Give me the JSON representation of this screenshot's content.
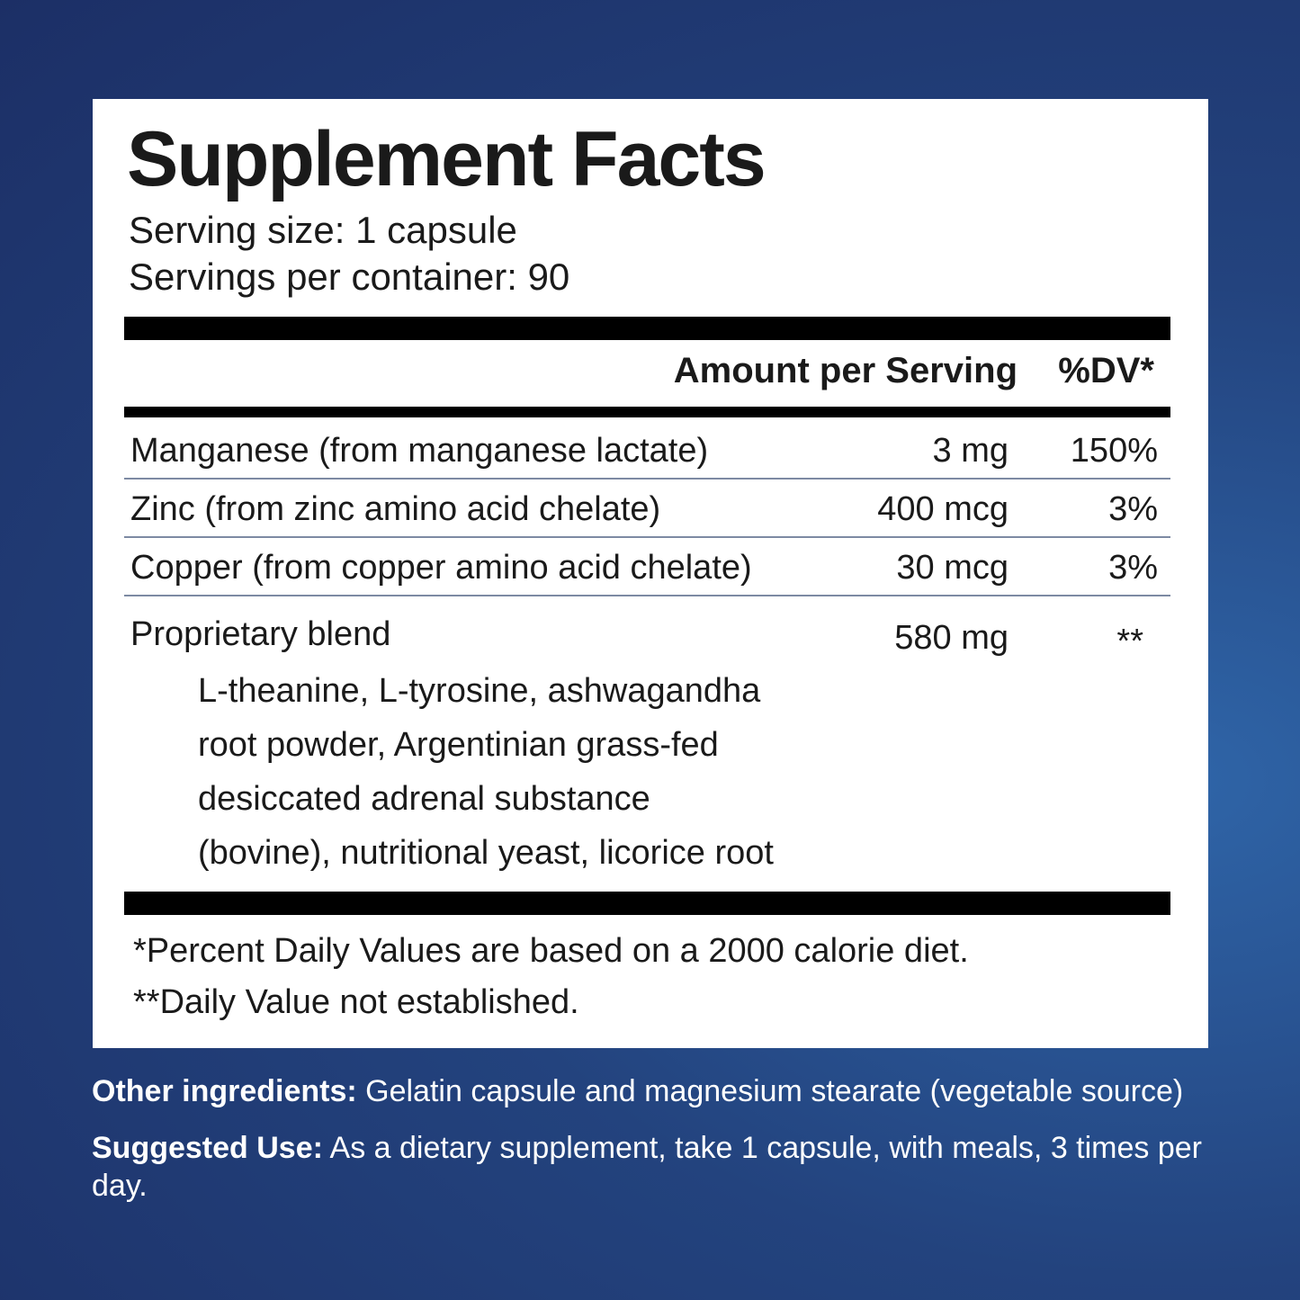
{
  "panel": {
    "title": "Supplement Facts",
    "serving_size": "Serving size: 1 capsule",
    "servings_per_container": "Servings per container: 90",
    "header": {
      "amount": "Amount per Serving",
      "dv": "%DV*"
    },
    "rows": [
      [
        "Manganese (from manganese lactate)",
        "3 mg",
        "150%"
      ],
      [
        "Zinc (from zinc amino acid chelate)",
        "400 mcg",
        "3%"
      ],
      [
        "Copper (from copper amino acid chelate)",
        "30 mcg",
        "3%"
      ]
    ],
    "blend": {
      "name": "Proprietary blend",
      "amount": "580 mg",
      "dv": "**",
      "lines": [
        "L-theanine, L-tyrosine, ashwagandha",
        "root powder, Argentinian grass-fed",
        "desiccated adrenal substance",
        "(bovine), nutritional yeast, licorice root"
      ]
    },
    "footnotes": [
      "*Percent Daily Values are based on a 2000 calorie diet.",
      "**Daily Value not established."
    ]
  },
  "other_ingredients": {
    "label": "Other ingredients:",
    "text": " Gelatin capsule and magnesium stearate (vegetable source)"
  },
  "suggested_use": {
    "label": "Suggested Use:",
    "text": " As a dietary supplement, take 1 capsule, with meals, 3 times per day."
  }
}
